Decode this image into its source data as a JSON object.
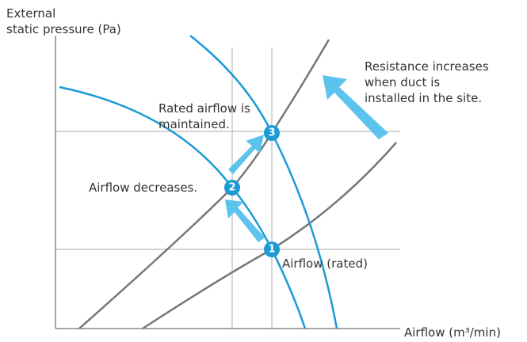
{
  "axes": {
    "y_label": [
      "External",
      "static pressure (Pa)"
    ],
    "x_label": "Airflow (m³/min)"
  },
  "annotations": {
    "rated_maintained": [
      "Rated airflow is",
      "maintained."
    ],
    "airflow_decreases": "Airflow decreases.",
    "airflow_rated": "Airflow (rated)",
    "resistance": [
      "Resistance increases",
      "when duct is",
      "installed in the site."
    ]
  },
  "points": [
    "1",
    "2",
    "3"
  ]
}
